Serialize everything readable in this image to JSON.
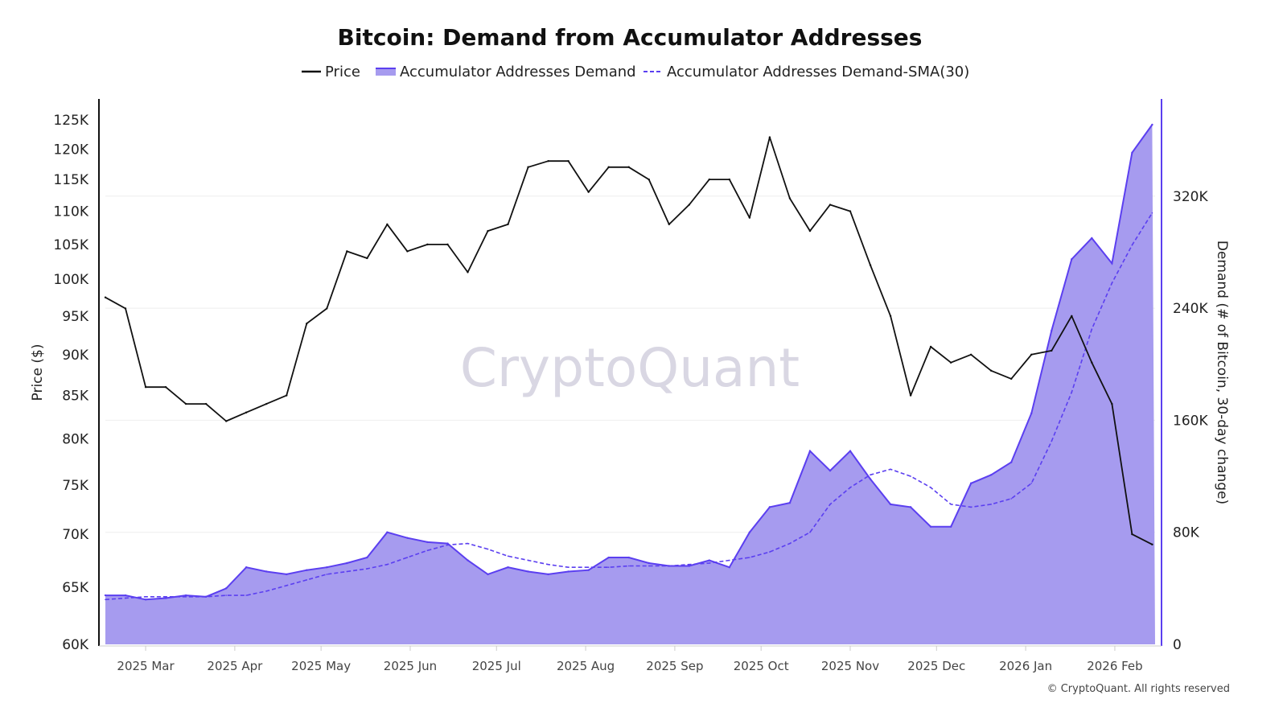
{
  "chart_data": {
    "type": "line",
    "title": "Bitcoin: Demand from Accumulator Addresses",
    "watermark": "CryptoQuant",
    "copyright": "© CryptoQuant. All rights reserved",
    "legend": {
      "placement": "top-center",
      "entries": [
        "Price",
        "Accumulator Addresses Demand",
        "Accumulator Addresses Demand-SMA(30)"
      ]
    },
    "ylabel_left": "Price ($)",
    "ylabel_right": "Demand (# of Bitcoin, 30-day change)",
    "y_left": {
      "scale": "log",
      "range": [
        60000,
        130000
      ],
      "ticks": [
        60000,
        65000,
        70000,
        75000,
        80000,
        85000,
        90000,
        95000,
        100000,
        105000,
        110000,
        115000,
        120000,
        125000
      ],
      "tick_labels": [
        "60K",
        "65K",
        "70K",
        "75K",
        "80K",
        "85K",
        "90K",
        "95K",
        "100K",
        "105K",
        "110K",
        "115K",
        "120K",
        "125K"
      ]
    },
    "y_right": {
      "scale": "linear",
      "range": [
        0,
        390000
      ],
      "ticks": [
        0,
        80000,
        160000,
        240000,
        320000
      ],
      "tick_labels": [
        "0",
        "80K",
        "160K",
        "240K",
        "320K"
      ]
    },
    "grid": "horizontal",
    "x_ticks": [
      {
        "date": "2025-03-01",
        "label": "2025 Mar"
      },
      {
        "date": "2025-04-01",
        "label": "2025 Apr"
      },
      {
        "date": "2025-05-01",
        "label": "2025 May"
      },
      {
        "date": "2025-06-01",
        "label": "2025 Jun"
      },
      {
        "date": "2025-07-01",
        "label": "2025 Jul"
      },
      {
        "date": "2025-08-01",
        "label": "2025 Aug"
      },
      {
        "date": "2025-09-01",
        "label": "2025 Sep"
      },
      {
        "date": "2025-10-01",
        "label": "2025 Oct"
      },
      {
        "date": "2025-11-01",
        "label": "2025 Nov"
      },
      {
        "date": "2025-12-01",
        "label": "2025 Dec"
      },
      {
        "date": "2026-01-01",
        "label": "2026 Jan"
      },
      {
        "date": "2026-02-01",
        "label": "2026 Feb"
      }
    ],
    "x_range": [
      "2025-02-15",
      "2026-02-15"
    ],
    "colors": {
      "price": "#111111",
      "demand_line": "#5b3ff0",
      "demand_fill": "#a69bef",
      "sma": "#5b3ff0",
      "right_axis": "#5b3ff0"
    },
    "x": [
      "2025-02-15",
      "2025-02-22",
      "2025-03-01",
      "2025-03-08",
      "2025-03-15",
      "2025-03-22",
      "2025-03-29",
      "2025-04-05",
      "2025-04-12",
      "2025-04-19",
      "2025-04-26",
      "2025-05-03",
      "2025-05-10",
      "2025-05-17",
      "2025-05-24",
      "2025-05-31",
      "2025-06-07",
      "2025-06-14",
      "2025-06-21",
      "2025-06-28",
      "2025-07-05",
      "2025-07-12",
      "2025-07-19",
      "2025-07-26",
      "2025-08-02",
      "2025-08-09",
      "2025-08-16",
      "2025-08-23",
      "2025-08-30",
      "2025-09-06",
      "2025-09-13",
      "2025-09-20",
      "2025-09-27",
      "2025-10-04",
      "2025-10-11",
      "2025-10-18",
      "2025-10-25",
      "2025-11-01",
      "2025-11-08",
      "2025-11-15",
      "2025-11-22",
      "2025-11-29",
      "2025-12-06",
      "2025-12-13",
      "2025-12-20",
      "2025-12-27",
      "2026-01-03",
      "2026-01-10",
      "2026-01-17",
      "2026-01-24",
      "2026-01-31",
      "2026-02-07",
      "2026-02-14"
    ],
    "series": [
      {
        "name": "Price",
        "axis": "left",
        "type": "line",
        "values": [
          97500,
          96000,
          86000,
          86000,
          84000,
          84000,
          82000,
          83000,
          84000,
          85000,
          94000,
          96000,
          104000,
          103000,
          108000,
          104000,
          105000,
          105000,
          101000,
          107000,
          108000,
          117000,
          118000,
          118000,
          113000,
          117000,
          117000,
          115000,
          108000,
          111000,
          115000,
          115000,
          109000,
          122000,
          112000,
          107000,
          111000,
          110000,
          102000,
          95000,
          85000,
          91000,
          89000,
          90000,
          88000,
          87000,
          90000,
          90500,
          95000,
          89000,
          84000,
          70000,
          69000
        ]
      },
      {
        "name": "Accumulator Addresses Demand",
        "axis": "right",
        "type": "area",
        "values": [
          35000,
          35000,
          32000,
          33000,
          35000,
          34000,
          40000,
          55000,
          52000,
          50000,
          53000,
          55000,
          58000,
          62000,
          80000,
          76000,
          73000,
          72000,
          60000,
          50000,
          55000,
          52000,
          50000,
          52000,
          53000,
          62000,
          62000,
          58000,
          56000,
          56000,
          60000,
          55000,
          80000,
          98000,
          101000,
          138000,
          124000,
          138000,
          118000,
          100000,
          98000,
          84000,
          84000,
          115000,
          121000,
          130000,
          165000,
          224000,
          275000,
          290000,
          272000,
          351000,
          371000
        ]
      },
      {
        "name": "Accumulator Addresses Demand-SMA(30)",
        "axis": "right",
        "type": "line-dashed",
        "values": [
          32000,
          33000,
          34000,
          34000,
          34000,
          34000,
          35000,
          35000,
          38000,
          42000,
          46000,
          50000,
          52000,
          54000,
          57000,
          62000,
          67000,
          71000,
          72000,
          68000,
          63000,
          60000,
          57000,
          55000,
          55000,
          55000,
          56000,
          56000,
          56000,
          57000,
          58000,
          60000,
          62000,
          66000,
          72000,
          80000,
          100000,
          112000,
          121000,
          125000,
          120000,
          112000,
          100000,
          98000,
          100000,
          104000,
          115000,
          145000,
          180000,
          225000,
          258000,
          285000,
          308000
        ]
      }
    ]
  }
}
